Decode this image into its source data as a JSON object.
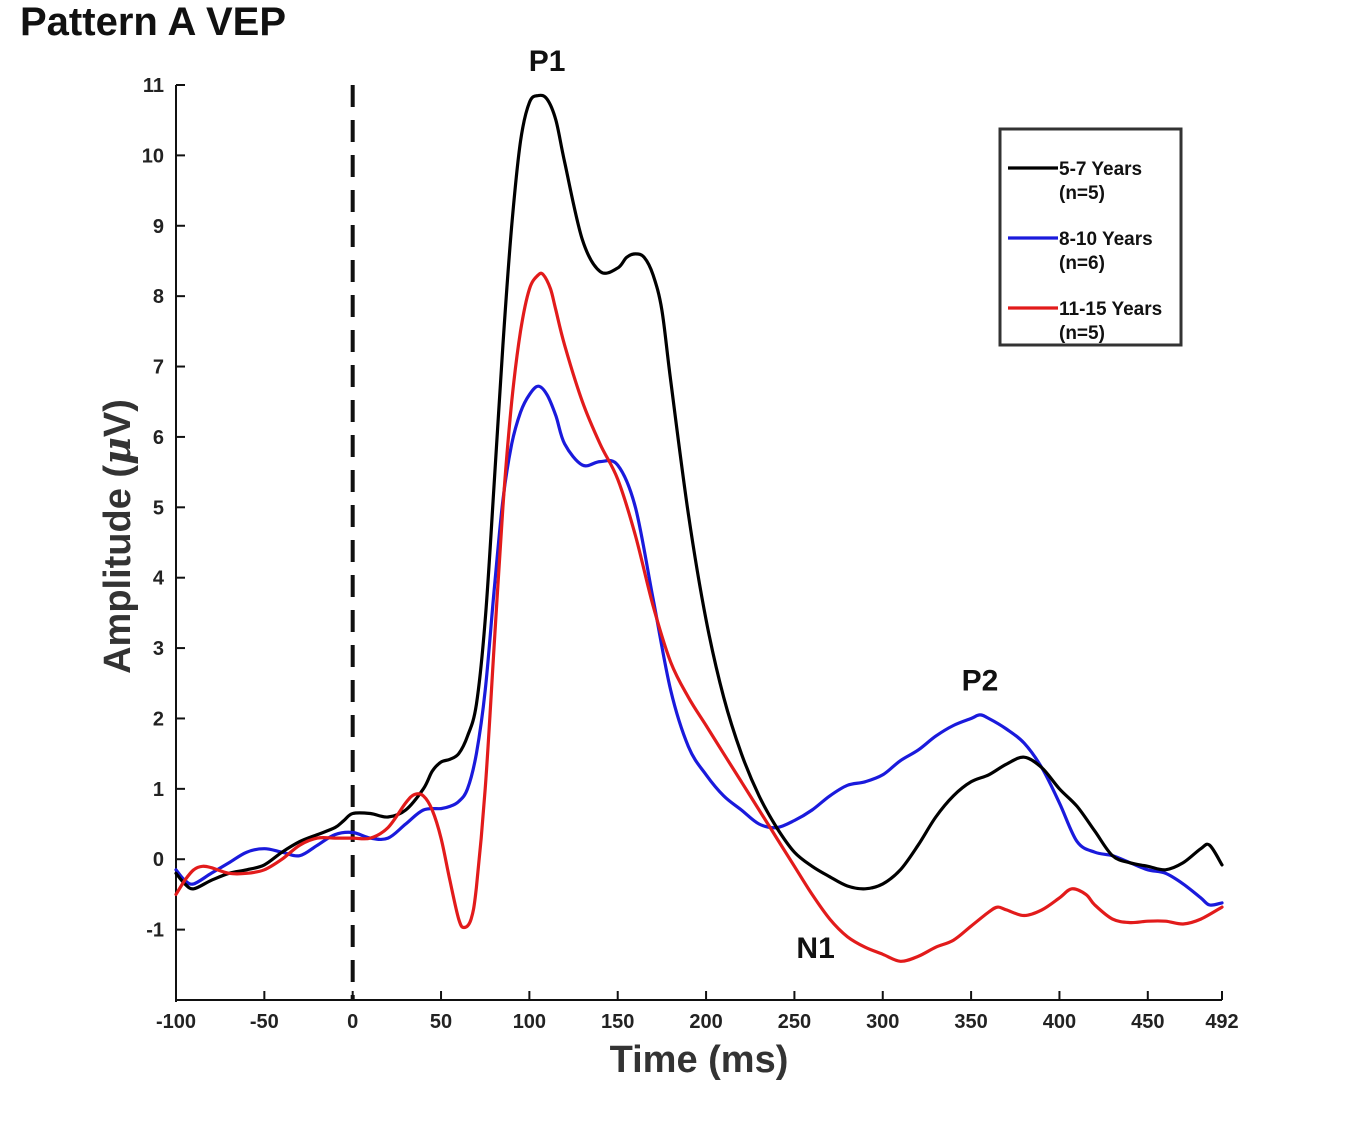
{
  "chart_data": {
    "type": "line",
    "title": "Pattern A VEP",
    "xlabel": "Time (ms)",
    "ylabel_prefix": "Amplitude (",
    "ylabel_mu": "μ",
    "ylabel_suffix": "V)",
    "xlim": [
      -100,
      492
    ],
    "ylim": [
      -2,
      11
    ],
    "xticks": [
      -100,
      -50,
      0,
      50,
      100,
      150,
      200,
      250,
      300,
      350,
      400,
      450,
      492
    ],
    "yticks": [
      -1,
      0,
      1,
      2,
      3,
      4,
      5,
      6,
      7,
      8,
      9,
      10,
      11
    ],
    "stimulus_onset_x": 0,
    "legend_position": "top-right",
    "annotations": [
      {
        "text": "P1",
        "x": 110,
        "y": 11.2
      },
      {
        "text": "P2",
        "x": 355,
        "y": 2.4
      },
      {
        "text": "N1",
        "x": 262,
        "y": -1.4
      }
    ],
    "series": [
      {
        "name": "5-7 Years",
        "n_label": "(n=5)",
        "color": "#000000",
        "x": [
          -100,
          -95,
          -90,
          -80,
          -70,
          -60,
          -50,
          -40,
          -30,
          -20,
          -10,
          -5,
          0,
          10,
          20,
          30,
          40,
          45,
          50,
          55,
          60,
          65,
          70,
          75,
          80,
          85,
          90,
          95,
          100,
          105,
          110,
          115,
          120,
          130,
          140,
          150,
          155,
          160,
          165,
          170,
          175,
          180,
          190,
          200,
          210,
          220,
          230,
          240,
          250,
          260,
          270,
          280,
          290,
          300,
          310,
          320,
          330,
          340,
          350,
          360,
          370,
          380,
          390,
          400,
          410,
          420,
          430,
          440,
          450,
          460,
          470,
          480,
          485,
          492
        ],
        "y": [
          -0.2,
          -0.35,
          -0.42,
          -0.3,
          -0.2,
          -0.15,
          -0.08,
          0.1,
          0.25,
          0.35,
          0.45,
          0.55,
          0.65,
          0.65,
          0.6,
          0.7,
          1.0,
          1.25,
          1.38,
          1.42,
          1.5,
          1.75,
          2.2,
          3.4,
          5.3,
          7.3,
          9.0,
          10.2,
          10.75,
          10.85,
          10.8,
          10.5,
          9.9,
          8.8,
          8.35,
          8.4,
          8.55,
          8.6,
          8.55,
          8.3,
          7.8,
          6.8,
          4.9,
          3.4,
          2.3,
          1.5,
          0.9,
          0.45,
          0.1,
          -0.1,
          -0.25,
          -0.38,
          -0.42,
          -0.35,
          -0.15,
          0.2,
          0.6,
          0.9,
          1.1,
          1.2,
          1.35,
          1.45,
          1.3,
          1.0,
          0.75,
          0.4,
          0.05,
          -0.05,
          -0.1,
          -0.15,
          -0.05,
          0.15,
          0.2,
          -0.08
        ]
      },
      {
        "name": "8-10 Years",
        "n_label": "(n=6)",
        "color": "#1a1adc",
        "x": [
          -100,
          -95,
          -90,
          -80,
          -70,
          -60,
          -50,
          -40,
          -30,
          -20,
          -10,
          0,
          10,
          20,
          30,
          40,
          50,
          55,
          60,
          65,
          70,
          75,
          80,
          85,
          90,
          95,
          100,
          105,
          110,
          115,
          120,
          130,
          140,
          150,
          160,
          170,
          180,
          190,
          200,
          210,
          220,
          230,
          240,
          250,
          260,
          270,
          280,
          290,
          300,
          310,
          320,
          330,
          340,
          350,
          355,
          360,
          370,
          380,
          390,
          400,
          410,
          420,
          430,
          440,
          450,
          460,
          470,
          480,
          485,
          492
        ],
        "y": [
          -0.15,
          -0.3,
          -0.35,
          -0.2,
          -0.05,
          0.1,
          0.15,
          0.1,
          0.05,
          0.2,
          0.35,
          0.38,
          0.3,
          0.3,
          0.5,
          0.7,
          0.72,
          0.75,
          0.82,
          1.0,
          1.5,
          2.4,
          3.8,
          5.1,
          5.9,
          6.35,
          6.6,
          6.72,
          6.6,
          6.3,
          5.9,
          5.6,
          5.65,
          5.6,
          5.0,
          3.7,
          2.4,
          1.6,
          1.2,
          0.9,
          0.7,
          0.5,
          0.45,
          0.55,
          0.7,
          0.9,
          1.05,
          1.1,
          1.2,
          1.4,
          1.55,
          1.75,
          1.9,
          2.0,
          2.05,
          2.0,
          1.85,
          1.65,
          1.3,
          0.8,
          0.25,
          0.1,
          0.05,
          -0.05,
          -0.15,
          -0.2,
          -0.35,
          -0.55,
          -0.65,
          -0.62
        ]
      },
      {
        "name": "11-15 Years",
        "n_label": "(n=5)",
        "color": "#e21b1b",
        "x": [
          -100,
          -95,
          -90,
          -85,
          -80,
          -70,
          -60,
          -50,
          -40,
          -30,
          -20,
          -10,
          0,
          10,
          20,
          30,
          35,
          40,
          45,
          50,
          55,
          60,
          63,
          67,
          70,
          75,
          80,
          85,
          90,
          95,
          100,
          105,
          108,
          112,
          115,
          120,
          130,
          140,
          150,
          160,
          170,
          180,
          190,
          200,
          210,
          220,
          230,
          240,
          250,
          260,
          270,
          280,
          290,
          300,
          310,
          320,
          330,
          340,
          350,
          360,
          365,
          370,
          380,
          390,
          400,
          407,
          415,
          420,
          430,
          440,
          450,
          460,
          470,
          480,
          492
        ],
        "y": [
          -0.5,
          -0.3,
          -0.15,
          -0.1,
          -0.12,
          -0.2,
          -0.2,
          -0.15,
          0.0,
          0.2,
          0.3,
          0.3,
          0.3,
          0.3,
          0.45,
          0.8,
          0.92,
          0.9,
          0.7,
          0.3,
          -0.3,
          -0.85,
          -0.97,
          -0.85,
          -0.4,
          1.0,
          3.0,
          5.0,
          6.5,
          7.5,
          8.1,
          8.3,
          8.3,
          8.1,
          7.8,
          7.3,
          6.5,
          5.9,
          5.4,
          4.6,
          3.6,
          2.8,
          2.3,
          1.9,
          1.5,
          1.1,
          0.7,
          0.3,
          -0.1,
          -0.5,
          -0.85,
          -1.1,
          -1.25,
          -1.35,
          -1.45,
          -1.38,
          -1.25,
          -1.15,
          -0.95,
          -0.75,
          -0.68,
          -0.72,
          -0.8,
          -0.72,
          -0.55,
          -0.42,
          -0.5,
          -0.65,
          -0.85,
          -0.9,
          -0.88,
          -0.88,
          -0.92,
          -0.85,
          -0.68
        ]
      }
    ]
  }
}
